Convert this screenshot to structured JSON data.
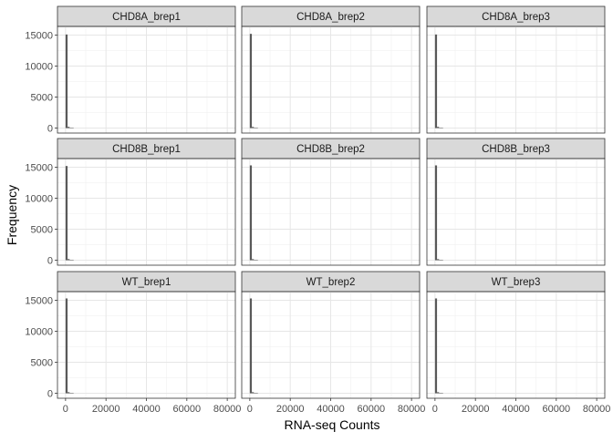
{
  "chart_data": {
    "type": "bar",
    "subtype": "faceted-histogram",
    "xlabel": "RNA-seq Counts",
    "ylabel": "Frequency",
    "xlim": [
      -4000,
      84000
    ],
    "ylim": [
      -800,
      16400
    ],
    "x_ticks": [
      0,
      20000,
      40000,
      60000,
      80000
    ],
    "x_tick_labels": [
      "0",
      "20000",
      "40000",
      "60000",
      "80000"
    ],
    "y_ticks": [
      0,
      5000,
      10000,
      15000
    ],
    "y_tick_labels": [
      "0",
      "5000",
      "10000",
      "15000"
    ],
    "grid": true,
    "bin_width": 1000,
    "bar_color": "#595959",
    "strip_fill": "#d9d9d9",
    "facets": [
      {
        "label": "CHD8A_brep1",
        "bins": [
          0,
          1000,
          2000,
          3000
        ],
        "counts": [
          15100,
          200,
          60,
          20
        ]
      },
      {
        "label": "CHD8A_brep2",
        "bins": [
          0,
          1000,
          2000,
          3000
        ],
        "counts": [
          15200,
          190,
          55,
          20
        ]
      },
      {
        "label": "CHD8A_brep3",
        "bins": [
          0,
          1000,
          2000,
          3000
        ],
        "counts": [
          15100,
          200,
          60,
          20
        ]
      },
      {
        "label": "CHD8B_brep1",
        "bins": [
          0,
          1000,
          2000,
          3000
        ],
        "counts": [
          15200,
          190,
          55,
          20
        ]
      },
      {
        "label": "CHD8B_brep2",
        "bins": [
          0,
          1000,
          2000,
          3000
        ],
        "counts": [
          15300,
          180,
          50,
          20
        ]
      },
      {
        "label": "CHD8B_brep3",
        "bins": [
          0,
          1000,
          2000,
          3000
        ],
        "counts": [
          15300,
          180,
          50,
          20
        ]
      },
      {
        "label": "WT_brep1",
        "bins": [
          0,
          1000,
          2000,
          3000
        ],
        "counts": [
          15300,
          180,
          50,
          20
        ]
      },
      {
        "label": "WT_brep2",
        "bins": [
          0,
          1000,
          2000,
          3000
        ],
        "counts": [
          15300,
          180,
          50,
          20
        ]
      },
      {
        "label": "WT_brep3",
        "bins": [
          0,
          1000,
          2000,
          3000
        ],
        "counts": [
          15300,
          180,
          50,
          20
        ]
      }
    ]
  }
}
